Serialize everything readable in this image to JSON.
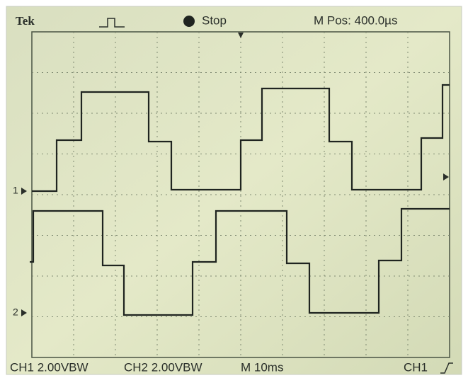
{
  "header": {
    "brand": "Tek",
    "status": "Stop",
    "position": "M Pos: 400.0µs"
  },
  "markers": {
    "ch1": "1",
    "ch2": "2"
  },
  "footer": {
    "ch1_scale": "CH1 2.00VBW",
    "ch2_scale": "CH2 2.00VBW",
    "timebase": "M 10ms",
    "trigger": "CH1"
  }
}
